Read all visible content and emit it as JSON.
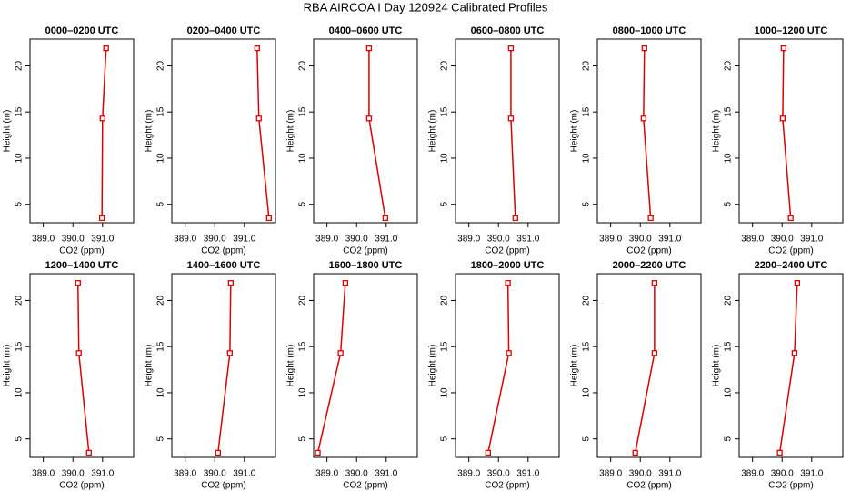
{
  "title": "RBA AIRCOA I  Day 120924  Calibrated Profiles",
  "chart_data": [
    {
      "type": "line",
      "title": "0000–0200 UTC",
      "x_label": "CO2 (ppm)",
      "y_label": "Height (m)",
      "color": "#dd0000",
      "x": [
        390.98,
        391.0,
        391.12
      ],
      "y": [
        3.5,
        14.3,
        21.9
      ],
      "xlim": [
        388.55,
        392.05
      ],
      "ylim": [
        3.0,
        22.9
      ],
      "xticks": [
        {
          "value": 389,
          "label": "389.0"
        },
        {
          "value": 390,
          "label": "390.0"
        },
        {
          "value": 391,
          "label": "391.0"
        }
      ],
      "yticks": [
        5,
        10,
        15,
        20
      ]
    },
    {
      "type": "line",
      "title": "0200–0400 UTC",
      "x_label": "CO2 (ppm)",
      "y_label": "Height (m)",
      "color": "#dd0000",
      "x": [
        391.83,
        391.49,
        391.43
      ],
      "y": [
        3.5,
        14.3,
        21.9
      ],
      "xlim": [
        388.55,
        392.05
      ],
      "ylim": [
        3.0,
        22.9
      ],
      "xticks": [
        {
          "value": 389,
          "label": "389.0"
        },
        {
          "value": 390,
          "label": "390.0"
        },
        {
          "value": 391,
          "label": "391.0"
        }
      ],
      "yticks": [
        5,
        10,
        15,
        20
      ]
    },
    {
      "type": "line",
      "title": "0400–0600 UTC",
      "x_label": "CO2 (ppm)",
      "y_label": "Height (m)",
      "color": "#dd0000",
      "x": [
        390.97,
        390.42,
        390.42
      ],
      "y": [
        3.5,
        14.3,
        21.9
      ],
      "xlim": [
        388.55,
        392.05
      ],
      "ylim": [
        3.0,
        22.9
      ],
      "xticks": [
        {
          "value": 389,
          "label": "389.0"
        },
        {
          "value": 390,
          "label": "390.0"
        },
        {
          "value": 391,
          "label": "391.0"
        }
      ],
      "yticks": [
        5,
        10,
        15,
        20
      ]
    },
    {
      "type": "line",
      "title": "0600–0800 UTC",
      "x_label": "CO2 (ppm)",
      "y_label": "Height (m)",
      "color": "#dd0000",
      "x": [
        390.57,
        390.42,
        390.42
      ],
      "y": [
        3.5,
        14.3,
        21.9
      ],
      "xlim": [
        388.55,
        392.05
      ],
      "ylim": [
        3.0,
        22.9
      ],
      "xticks": [
        {
          "value": 389,
          "label": "389.0"
        },
        {
          "value": 390,
          "label": "390.0"
        },
        {
          "value": 391,
          "label": "391.0"
        }
      ],
      "yticks": [
        5,
        10,
        15,
        20
      ]
    },
    {
      "type": "line",
      "title": "0800–1000 UTC",
      "x_label": "CO2 (ppm)",
      "y_label": "Height (m)",
      "color": "#dd0000",
      "x": [
        390.35,
        390.11,
        390.14
      ],
      "y": [
        3.5,
        14.3,
        21.9
      ],
      "xlim": [
        388.55,
        392.05
      ],
      "ylim": [
        3.0,
        22.9
      ],
      "xticks": [
        {
          "value": 389,
          "label": "389.0"
        },
        {
          "value": 390,
          "label": "390.0"
        },
        {
          "value": 391,
          "label": "391.0"
        }
      ],
      "yticks": [
        5,
        10,
        15,
        20
      ]
    },
    {
      "type": "line",
      "title": "1000–1200 UTC",
      "x_label": "CO2 (ppm)",
      "y_label": "Height (m)",
      "color": "#dd0000",
      "x": [
        390.29,
        390.02,
        390.05
      ],
      "y": [
        3.5,
        14.3,
        21.9
      ],
      "xlim": [
        388.55,
        392.05
      ],
      "ylim": [
        3.0,
        22.9
      ],
      "xticks": [
        {
          "value": 389,
          "label": "389.0"
        },
        {
          "value": 390,
          "label": "390.0"
        },
        {
          "value": 391,
          "label": "391.0"
        }
      ],
      "yticks": [
        5,
        10,
        15,
        20
      ]
    },
    {
      "type": "line",
      "title": "1200–1400 UTC",
      "x_label": "CO2 (ppm)",
      "y_label": "Height (m)",
      "color": "#dd0000",
      "x": [
        390.54,
        390.2,
        390.17
      ],
      "y": [
        3.5,
        14.3,
        21.9
      ],
      "xlim": [
        388.55,
        392.05
      ],
      "ylim": [
        3.0,
        22.9
      ],
      "xticks": [
        {
          "value": 389,
          "label": "389.0"
        },
        {
          "value": 390,
          "label": "390.0"
        },
        {
          "value": 391,
          "label": "391.0"
        }
      ],
      "yticks": [
        5,
        10,
        15,
        20
      ]
    },
    {
      "type": "line",
      "title": "1400–1600 UTC",
      "x_label": "CO2 (ppm)",
      "y_label": "Height (m)",
      "color": "#dd0000",
      "x": [
        390.11,
        390.51,
        390.54
      ],
      "y": [
        3.5,
        14.3,
        21.9
      ],
      "xlim": [
        388.55,
        392.05
      ],
      "ylim": [
        3.0,
        22.9
      ],
      "xticks": [
        {
          "value": 389,
          "label": "389.0"
        },
        {
          "value": 390,
          "label": "390.0"
        },
        {
          "value": 391,
          "label": "391.0"
        }
      ],
      "yticks": [
        5,
        10,
        15,
        20
      ]
    },
    {
      "type": "line",
      "title": "1600–1800 UTC",
      "x_label": "CO2 (ppm)",
      "y_label": "Height (m)",
      "color": "#dd0000",
      "x": [
        388.69,
        389.46,
        389.62
      ],
      "y": [
        3.5,
        14.3,
        21.9
      ],
      "xlim": [
        388.55,
        392.05
      ],
      "ylim": [
        3.0,
        22.9
      ],
      "xticks": [
        {
          "value": 389,
          "label": "389.0"
        },
        {
          "value": 390,
          "label": "390.0"
        },
        {
          "value": 391,
          "label": "391.0"
        }
      ],
      "yticks": [
        5,
        10,
        15,
        20
      ]
    },
    {
      "type": "line",
      "title": "1800–2000 UTC",
      "x_label": "CO2 (ppm)",
      "y_label": "Height (m)",
      "color": "#dd0000",
      "x": [
        389.65,
        390.35,
        390.32
      ],
      "y": [
        3.5,
        14.3,
        21.9
      ],
      "xlim": [
        388.55,
        392.05
      ],
      "ylim": [
        3.0,
        22.9
      ],
      "xticks": [
        {
          "value": 389,
          "label": "389.0"
        },
        {
          "value": 390,
          "label": "390.0"
        },
        {
          "value": 391,
          "label": "391.0"
        }
      ],
      "yticks": [
        5,
        10,
        15,
        20
      ]
    },
    {
      "type": "line",
      "title": "2000–2200 UTC",
      "x_label": "CO2 (ppm)",
      "y_label": "Height (m)",
      "color": "#dd0000",
      "x": [
        389.83,
        390.48,
        390.48
      ],
      "y": [
        3.5,
        14.3,
        21.9
      ],
      "xlim": [
        388.55,
        392.05
      ],
      "ylim": [
        3.0,
        22.9
      ],
      "xticks": [
        {
          "value": 389,
          "label": "389.0"
        },
        {
          "value": 390,
          "label": "390.0"
        },
        {
          "value": 391,
          "label": "391.0"
        }
      ],
      "yticks": [
        5,
        10,
        15,
        20
      ]
    },
    {
      "type": "line",
      "title": "2200–2400 UTC",
      "x_label": "CO2 (ppm)",
      "y_label": "Height (m)",
      "color": "#dd0000",
      "x": [
        389.92,
        390.42,
        390.51
      ],
      "y": [
        3.5,
        14.3,
        21.9
      ],
      "xlim": [
        388.55,
        392.05
      ],
      "ylim": [
        3.0,
        22.9
      ],
      "xticks": [
        {
          "value": 389,
          "label": "389.0"
        },
        {
          "value": 390,
          "label": "390.0"
        },
        {
          "value": 391,
          "label": "391.0"
        }
      ],
      "yticks": [
        5,
        10,
        15,
        20
      ]
    }
  ]
}
